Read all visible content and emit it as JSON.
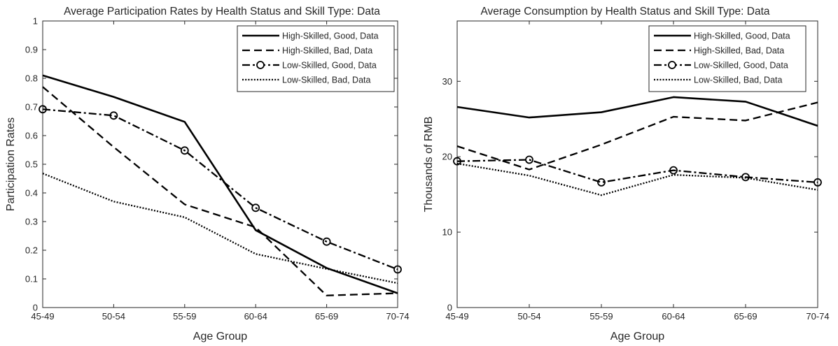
{
  "chart_data": [
    {
      "type": "line",
      "title": "Average Participation Rates by Health Status and Skill Type: Data",
      "xlabel": "Age Group",
      "ylabel": "Participation Rates",
      "categories": [
        "45-49",
        "50-54",
        "55-59",
        "60-64",
        "65-69",
        "70-74"
      ],
      "ylim": [
        0,
        1
      ],
      "yticks": [
        "0",
        "0.1",
        "0.2",
        "0.3",
        "0.4",
        "0.5",
        "0.6",
        "0.7",
        "0.8",
        "0.9",
        "1"
      ],
      "yticks_values": [
        0,
        0.1,
        0.2,
        0.3,
        0.4,
        0.5,
        0.6,
        0.7,
        0.8,
        0.9,
        1
      ],
      "legend_position": "top-right",
      "grid": false,
      "series": [
        {
          "name": "High-Skilled, Good, Data",
          "style": "solid",
          "values": [
            0.81,
            0.735,
            0.648,
            0.27,
            0.138,
            0.05
          ]
        },
        {
          "name": "High-Skilled, Bad, Data",
          "style": "dashed",
          "values": [
            0.77,
            0.56,
            0.36,
            0.28,
            0.042,
            0.05
          ]
        },
        {
          "name": "Low-Skilled, Good, Data",
          "style": "dashdot-circle",
          "values": [
            0.692,
            0.67,
            0.548,
            0.348,
            0.23,
            0.133
          ]
        },
        {
          "name": "Low-Skilled, Bad, Data",
          "style": "dotted",
          "values": [
            0.468,
            0.37,
            0.315,
            0.187,
            0.135,
            0.085
          ]
        }
      ]
    },
    {
      "type": "line",
      "title": "Average Consumption by Health Status and Skill Type: Data",
      "xlabel": "Age Group",
      "ylabel": "Thousands of RMB",
      "categories": [
        "45-49",
        "50-54",
        "55-59",
        "60-64",
        "65-69",
        "70-74"
      ],
      "ylim": [
        0,
        38
      ],
      "yticks": [
        "0",
        "10",
        "20",
        "30"
      ],
      "yticks_values": [
        0,
        10,
        20,
        30
      ],
      "legend_position": "top-right",
      "grid": false,
      "series": [
        {
          "name": "High-Skilled, Good, Data",
          "style": "solid",
          "values": [
            26.6,
            25.2,
            25.9,
            27.9,
            27.3,
            24.1
          ]
        },
        {
          "name": "High-Skilled, Bad, Data",
          "style": "dashed",
          "values": [
            21.4,
            18.3,
            21.6,
            25.3,
            24.8,
            27.2
          ]
        },
        {
          "name": "Low-Skilled, Good, Data",
          "style": "dashdot-circle",
          "values": [
            19.4,
            19.6,
            16.6,
            18.2,
            17.3,
            16.6
          ]
        },
        {
          "name": "Low-Skilled, Bad, Data",
          "style": "dotted",
          "values": [
            19.1,
            17.5,
            14.9,
            17.6,
            17.2,
            15.6
          ]
        }
      ]
    }
  ]
}
